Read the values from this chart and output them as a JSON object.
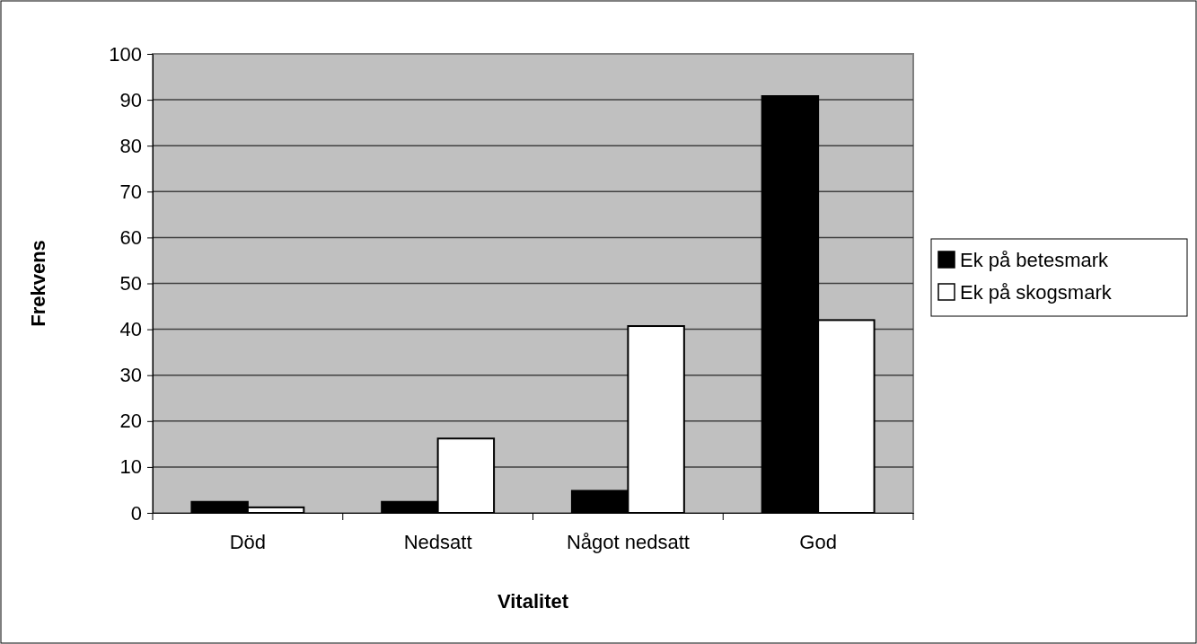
{
  "chart_data": {
    "type": "bar",
    "xlabel": "Vitalitet",
    "ylabel": "Frekvens",
    "categories": [
      "Död",
      "Nedsatt",
      "Något nedsatt",
      "God"
    ],
    "series": [
      {
        "name": "Ek på betesmark",
        "color": "#000000",
        "values": [
          2.4,
          2.4,
          4.8,
          90.8
        ]
      },
      {
        "name": "Ek på skogsmark",
        "color": "#ffffff",
        "values": [
          1.2,
          16.2,
          40.7,
          42.0
        ]
      }
    ],
    "ylim": [
      0,
      100
    ],
    "yticks": [
      0,
      10,
      20,
      30,
      40,
      50,
      60,
      70,
      80,
      90,
      100
    ],
    "grid": "y",
    "legend": "right"
  }
}
